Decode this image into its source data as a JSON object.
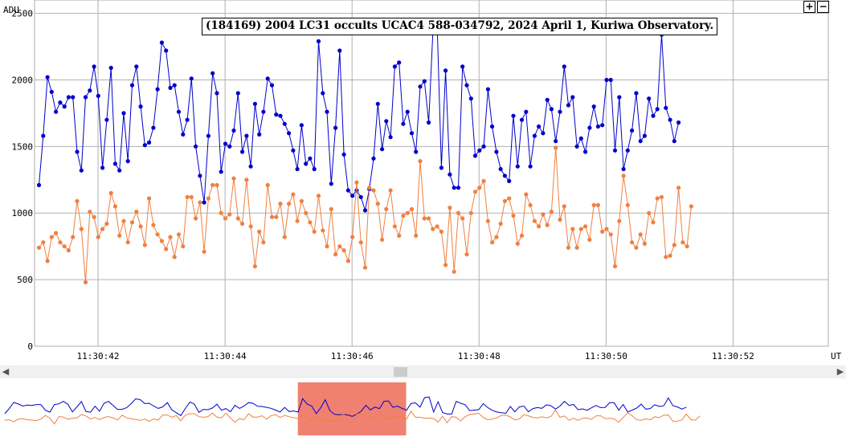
{
  "chart_data": {
    "type": "line",
    "title": "(184169) 2004 LC31 occults UCAC4 588-034792, 2024 April 1, Kuriwa Observatory.",
    "ylabel": "ADU",
    "xlabel": "UT",
    "ylim": [
      0,
      2600
    ],
    "yticks": [
      0,
      500,
      1000,
      1500,
      2000,
      2500
    ],
    "xlim": [
      41.0,
      53.5
    ],
    "xticks": [
      {
        "value": 42,
        "label": "11:30:42"
      },
      {
        "value": 44,
        "label": "11:30:44"
      },
      {
        "value": 46,
        "label": "11:30:46"
      },
      {
        "value": 48,
        "label": "11:30:48"
      },
      {
        "value": 50,
        "label": "11:30:50"
      },
      {
        "value": 52,
        "label": "11:30:52"
      }
    ],
    "grid": true,
    "x_start": 41.07,
    "x_step": 0.0667,
    "series": [
      {
        "color": "#0000cc",
        "values": [
          1210,
          1580,
          2020,
          1910,
          1760,
          1830,
          1800,
          1870,
          1870,
          1460,
          1320,
          1870,
          1920,
          2100,
          1880,
          1340,
          1700,
          2090,
          1370,
          1320,
          1750,
          1390,
          1960,
          2100,
          1800,
          1510,
          1530,
          1640,
          1930,
          2280,
          2220,
          1940,
          1960,
          1760,
          1590,
          1700,
          2010,
          1500,
          1280,
          1080,
          1580,
          2050,
          1900,
          1310,
          1520,
          1500,
          1620,
          1900,
          1460,
          1580,
          1350,
          1820,
          1590,
          1760,
          2010,
          1960,
          1740,
          1730,
          1670,
          1600,
          1470,
          1330,
          1660,
          1370,
          1410,
          1330,
          2290,
          1900,
          1760,
          1220,
          1640,
          2220,
          1440,
          1170,
          1130,
          1170,
          1120,
          1020,
          1180,
          1410,
          1820,
          1480,
          1690,
          1570,
          2100,
          2130,
          1670,
          1760,
          1600,
          1460,
          1950,
          1990,
          1680,
          2360,
          2420,
          1340,
          2070,
          1290,
          1190,
          1190,
          2100,
          1960,
          1860,
          1430,
          1470,
          1500,
          1930,
          1650,
          1460,
          1330,
          1280,
          1240,
          1730,
          1350,
          1700,
          1760,
          1350,
          1580,
          1650,
          1600,
          1850,
          1780,
          1540,
          1760,
          2100,
          1810,
          1870,
          1500,
          1560,
          1460,
          1640,
          1800,
          1650,
          1660,
          2000,
          2000,
          1470,
          1870,
          1330,
          1470,
          1620,
          1900,
          1540,
          1580,
          1860,
          1730,
          1780,
          2340,
          1790,
          1700,
          1540,
          1680
        ]
      },
      {
        "color": "#f08040",
        "values": [
          740,
          780,
          640,
          820,
          850,
          780,
          750,
          720,
          820,
          1090,
          880,
          480,
          1010,
          970,
          820,
          880,
          920,
          1150,
          1050,
          830,
          940,
          780,
          930,
          1010,
          900,
          760,
          1110,
          910,
          840,
          790,
          730,
          820,
          670,
          840,
          750,
          1120,
          1120,
          960,
          1080,
          710,
          1110,
          1210,
          1210,
          1000,
          960,
          990,
          1260,
          960,
          920,
          1250,
          900,
          600,
          860,
          780,
          1210,
          970,
          970,
          1070,
          820,
          1070,
          1140,
          940,
          1090,
          1000,
          930,
          860,
          1130,
          870,
          750,
          1030,
          690,
          750,
          720,
          640,
          820,
          1230,
          780,
          590,
          1190,
          1170,
          1070,
          800,
          1030,
          1170,
          900,
          830,
          980,
          1000,
          1030,
          830,
          1390,
          960,
          960,
          880,
          900,
          860,
          610,
          1040,
          560,
          1000,
          960,
          690,
          1000,
          1160,
          1190,
          1240,
          940,
          780,
          820,
          920,
          1090,
          1110,
          980,
          770,
          830,
          1140,
          1060,
          940,
          900,
          990,
          910,
          1010,
          1490,
          950,
          1050,
          740,
          880,
          740,
          880,
          900,
          800,
          1060,
          1060,
          860,
          880,
          840,
          600,
          940,
          1280,
          1060,
          780,
          740,
          840,
          770,
          1000,
          930,
          1110,
          1120,
          670,
          680,
          760,
          1190,
          780,
          750,
          1050
        ]
      }
    ],
    "overview": {
      "highlight_range": [
        45.4,
        47.0
      ],
      "highlight_color": "#f08070"
    }
  },
  "zoom": {
    "plus": "+",
    "minus": "−"
  },
  "scrollbar": {
    "left_arrow": "◀",
    "right_arrow": "▶"
  }
}
